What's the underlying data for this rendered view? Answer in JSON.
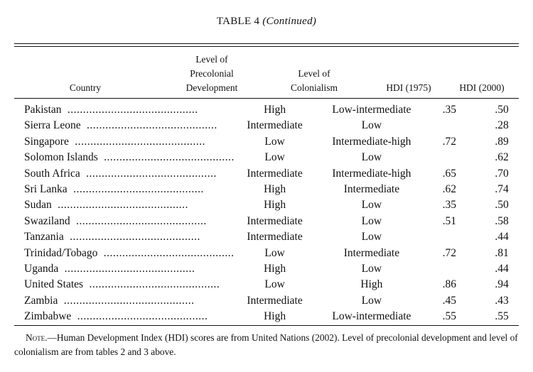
{
  "title": {
    "main": "TABLE 4",
    "continued": "(Continued)"
  },
  "headers": {
    "country": "Country",
    "precolonial": [
      "Level of",
      "Precolonial",
      "Development"
    ],
    "colonialism": [
      "Level of",
      "Colonialism"
    ],
    "hdi1975": "HDI (1975)",
    "hdi2000": "HDI (2000)"
  },
  "rows": [
    {
      "country": "Pakistan",
      "precolonial": "High",
      "colonialism": "Low-intermediate",
      "hdi1975": ".35",
      "hdi2000": ".50"
    },
    {
      "country": "Sierra Leone",
      "precolonial": "Intermediate",
      "colonialism": "Low",
      "hdi1975": "",
      "hdi2000": ".28"
    },
    {
      "country": "Singapore",
      "precolonial": "Low",
      "colonialism": "Intermediate-high",
      "hdi1975": ".72",
      "hdi2000": ".89"
    },
    {
      "country": "Solomon Islands",
      "precolonial": "Low",
      "colonialism": "Low",
      "hdi1975": "",
      "hdi2000": ".62"
    },
    {
      "country": "South Africa",
      "precolonial": "Intermediate",
      "colonialism": "Intermediate-high",
      "hdi1975": ".65",
      "hdi2000": ".70"
    },
    {
      "country": "Sri Lanka",
      "precolonial": "High",
      "colonialism": "Intermediate",
      "hdi1975": ".62",
      "hdi2000": ".74"
    },
    {
      "country": "Sudan",
      "precolonial": "High",
      "colonialism": "Low",
      "hdi1975": ".35",
      "hdi2000": ".50"
    },
    {
      "country": "Swaziland",
      "precolonial": "Intermediate",
      "colonialism": "Low",
      "hdi1975": ".51",
      "hdi2000": ".58"
    },
    {
      "country": "Tanzania",
      "precolonial": "Intermediate",
      "colonialism": "Low",
      "hdi1975": "",
      "hdi2000": ".44"
    },
    {
      "country": "Trinidad/Tobago",
      "precolonial": "Low",
      "colonialism": "Intermediate",
      "hdi1975": ".72",
      "hdi2000": ".81"
    },
    {
      "country": "Uganda",
      "precolonial": "High",
      "colonialism": "Low",
      "hdi1975": "",
      "hdi2000": ".44"
    },
    {
      "country": "United States",
      "precolonial": "Low",
      "colonialism": "High",
      "hdi1975": ".86",
      "hdi2000": ".94"
    },
    {
      "country": "Zambia",
      "precolonial": "Intermediate",
      "colonialism": "Low",
      "hdi1975": ".45",
      "hdi2000": ".43"
    },
    {
      "country": "Zimbabwe",
      "precolonial": "High",
      "colonialism": "Low-intermediate",
      "hdi1975": ".55",
      "hdi2000": ".55"
    }
  ],
  "note": {
    "label": "Note.",
    "text": "—Human Development Index (HDI) scores are from United Nations (2002). Level of precolonial development and level of colonialism are from tables 2 and 3 above."
  }
}
